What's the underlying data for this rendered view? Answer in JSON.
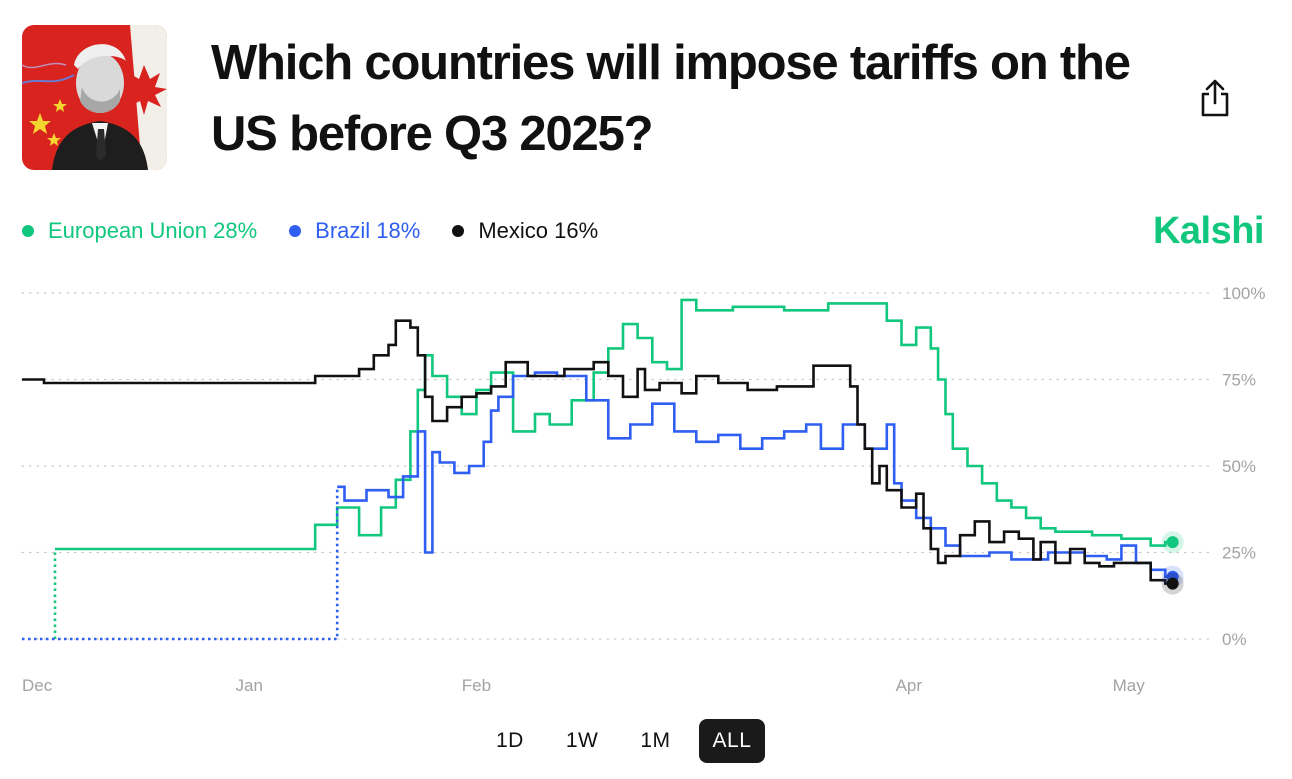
{
  "header": {
    "title": "Which countries will impose tariffs on the US before Q3 2025?",
    "share_icon": "share-icon",
    "thumbnail_icon": "market-thumbnail-image"
  },
  "legend": {
    "items": [
      {
        "label": "European Union 28%",
        "color": "#10c77d"
      },
      {
        "label": "Brazil 18%",
        "color": "#2f5ef3"
      },
      {
        "label": "Mexico 16%",
        "color": "#111111"
      }
    ]
  },
  "brand": {
    "name": "Kalshi",
    "color": "#10c77d"
  },
  "ranges": {
    "items": [
      "1D",
      "1W",
      "1M",
      "ALL"
    ],
    "active": "ALL"
  },
  "chart_data": {
    "type": "line",
    "title": "",
    "xlabel": "",
    "ylabel": "",
    "ylim": [
      0,
      100
    ],
    "grid": true,
    "legend": "top-left",
    "x_unit": "days since Dec 1, 2024",
    "xlim": [
      0,
      158
    ],
    "x_ticks": [
      {
        "label": "Dec",
        "x": 0
      },
      {
        "label": "Jan",
        "x": 31
      },
      {
        "label": "Feb",
        "x": 62
      },
      {
        "label": "Apr",
        "x": 121
      },
      {
        "label": "May",
        "x": 151
      }
    ],
    "y_ticks": [
      {
        "label": "100%",
        "value": 100
      },
      {
        "label": "75%",
        "value": 75
      },
      {
        "label": "50%",
        "value": 50
      },
      {
        "label": "25%",
        "value": 25
      },
      {
        "label": "0%",
        "value": 0
      }
    ],
    "series": [
      {
        "name": "European Union",
        "color": "#10c77d",
        "end_value": 28,
        "pre_trading": [
          [
            4.5,
            0
          ],
          [
            4.5,
            26
          ]
        ],
        "points": [
          [
            4.5,
            26
          ],
          [
            40,
            26
          ],
          [
            40,
            33
          ],
          [
            43,
            33
          ],
          [
            43,
            38
          ],
          [
            46,
            38
          ],
          [
            46,
            30
          ],
          [
            49,
            30
          ],
          [
            49,
            38
          ],
          [
            51,
            38
          ],
          [
            51,
            46
          ],
          [
            53,
            46
          ],
          [
            53,
            60
          ],
          [
            54,
            60
          ],
          [
            54,
            72
          ],
          [
            55,
            72
          ],
          [
            55,
            82
          ],
          [
            56,
            82
          ],
          [
            56,
            76
          ],
          [
            58,
            76
          ],
          [
            58,
            70
          ],
          [
            60,
            70
          ],
          [
            60,
            65
          ],
          [
            62,
            65
          ],
          [
            62,
            72
          ],
          [
            64,
            72
          ],
          [
            64,
            77
          ],
          [
            67,
            77
          ],
          [
            67,
            60
          ],
          [
            70,
            60
          ],
          [
            70,
            65
          ],
          [
            72,
            65
          ],
          [
            72,
            62
          ],
          [
            75,
            62
          ],
          [
            75,
            69
          ],
          [
            78,
            69
          ],
          [
            78,
            77
          ],
          [
            80,
            77
          ],
          [
            80,
            84
          ],
          [
            82,
            84
          ],
          [
            82,
            91
          ],
          [
            84,
            91
          ],
          [
            84,
            87
          ],
          [
            86,
            87
          ],
          [
            86,
            80
          ],
          [
            88,
            80
          ],
          [
            88,
            78
          ],
          [
            90,
            78
          ],
          [
            90,
            98
          ],
          [
            92,
            98
          ],
          [
            92,
            95
          ],
          [
            97,
            95
          ],
          [
            97,
            96
          ],
          [
            104,
            96
          ],
          [
            104,
            95
          ],
          [
            110,
            95
          ],
          [
            110,
            97
          ],
          [
            118,
            97
          ],
          [
            118,
            92
          ],
          [
            120,
            92
          ],
          [
            120,
            85
          ],
          [
            122,
            85
          ],
          [
            122,
            90
          ],
          [
            124,
            90
          ],
          [
            124,
            84
          ],
          [
            125,
            84
          ],
          [
            125,
            75
          ],
          [
            126,
            75
          ],
          [
            126,
            65
          ],
          [
            127,
            65
          ],
          [
            127,
            55
          ],
          [
            129,
            55
          ],
          [
            129,
            50
          ],
          [
            131,
            50
          ],
          [
            131,
            45
          ],
          [
            133,
            45
          ],
          [
            133,
            40
          ],
          [
            135,
            40
          ],
          [
            135,
            38
          ],
          [
            137,
            38
          ],
          [
            137,
            35
          ],
          [
            139,
            35
          ],
          [
            139,
            32
          ],
          [
            141,
            32
          ],
          [
            141,
            31
          ],
          [
            146,
            31
          ],
          [
            146,
            30
          ],
          [
            150,
            30
          ],
          [
            150,
            29
          ],
          [
            154,
            29
          ],
          [
            154,
            27
          ],
          [
            156,
            27
          ],
          [
            156,
            28
          ],
          [
            157,
            28
          ]
        ]
      },
      {
        "name": "Brazil",
        "color": "#2f5ef3",
        "end_value": 18,
        "pre_trading": [
          [
            0,
            0
          ],
          [
            43,
            0
          ],
          [
            43,
            44
          ]
        ],
        "points": [
          [
            43,
            44
          ],
          [
            44,
            44
          ],
          [
            44,
            40
          ],
          [
            47,
            40
          ],
          [
            47,
            43
          ],
          [
            50,
            43
          ],
          [
            50,
            41
          ],
          [
            52,
            41
          ],
          [
            52,
            47
          ],
          [
            54,
            47
          ],
          [
            54,
            60
          ],
          [
            55,
            60
          ],
          [
            55,
            25
          ],
          [
            56,
            25
          ],
          [
            56,
            54
          ],
          [
            57,
            54
          ],
          [
            57,
            51
          ],
          [
            59,
            51
          ],
          [
            59,
            48
          ],
          [
            61,
            48
          ],
          [
            61,
            50
          ],
          [
            63,
            50
          ],
          [
            63,
            57
          ],
          [
            64,
            57
          ],
          [
            64,
            66
          ],
          [
            65,
            66
          ],
          [
            65,
            70
          ],
          [
            67,
            70
          ],
          [
            67,
            76
          ],
          [
            70,
            76
          ],
          [
            70,
            77
          ],
          [
            73,
            77
          ],
          [
            73,
            76
          ],
          [
            77,
            76
          ],
          [
            77,
            69
          ],
          [
            80,
            69
          ],
          [
            80,
            58
          ],
          [
            83,
            58
          ],
          [
            83,
            62
          ],
          [
            86,
            62
          ],
          [
            86,
            68
          ],
          [
            89,
            68
          ],
          [
            89,
            60
          ],
          [
            92,
            60
          ],
          [
            92,
            57
          ],
          [
            95,
            57
          ],
          [
            95,
            59
          ],
          [
            98,
            59
          ],
          [
            98,
            55
          ],
          [
            101,
            55
          ],
          [
            101,
            58
          ],
          [
            104,
            58
          ],
          [
            104,
            60
          ],
          [
            107,
            60
          ],
          [
            107,
            62
          ],
          [
            109,
            62
          ],
          [
            109,
            55
          ],
          [
            112,
            55
          ],
          [
            112,
            62
          ],
          [
            115,
            62
          ],
          [
            115,
            55
          ],
          [
            118,
            55
          ],
          [
            118,
            62
          ],
          [
            119,
            62
          ],
          [
            119,
            45
          ],
          [
            120,
            45
          ],
          [
            120,
            40
          ],
          [
            122,
            40
          ],
          [
            122,
            35
          ],
          [
            124,
            35
          ],
          [
            124,
            32
          ],
          [
            126,
            32
          ],
          [
            126,
            27
          ],
          [
            128,
            27
          ],
          [
            128,
            24
          ],
          [
            132,
            24
          ],
          [
            132,
            25
          ],
          [
            135,
            25
          ],
          [
            135,
            23
          ],
          [
            140,
            23
          ],
          [
            140,
            25
          ],
          [
            145,
            25
          ],
          [
            145,
            24
          ],
          [
            148,
            24
          ],
          [
            148,
            23
          ],
          [
            150,
            23
          ],
          [
            150,
            27
          ],
          [
            152,
            27
          ],
          [
            152,
            22
          ],
          [
            154,
            22
          ],
          [
            154,
            20
          ],
          [
            156,
            20
          ],
          [
            156,
            18
          ],
          [
            157,
            18
          ]
        ]
      },
      {
        "name": "Mexico",
        "color": "#111111",
        "end_value": 16,
        "pre_trading": [],
        "points": [
          [
            0,
            75
          ],
          [
            3,
            75
          ],
          [
            3,
            74
          ],
          [
            20,
            74
          ],
          [
            40,
            74
          ],
          [
            40,
            76
          ],
          [
            44,
            76
          ],
          [
            44,
            76
          ],
          [
            46,
            76
          ],
          [
            46,
            78
          ],
          [
            48,
            78
          ],
          [
            48,
            82
          ],
          [
            50,
            82
          ],
          [
            50,
            85
          ],
          [
            51,
            85
          ],
          [
            51,
            92
          ],
          [
            53,
            92
          ],
          [
            53,
            90
          ],
          [
            54,
            90
          ],
          [
            54,
            82
          ],
          [
            55,
            82
          ],
          [
            55,
            70
          ],
          [
            56,
            70
          ],
          [
            56,
            63
          ],
          [
            58,
            63
          ],
          [
            58,
            67
          ],
          [
            60,
            67
          ],
          [
            60,
            70
          ],
          [
            62,
            70
          ],
          [
            62,
            71
          ],
          [
            64,
            71
          ],
          [
            64,
            73
          ],
          [
            66,
            73
          ],
          [
            66,
            80
          ],
          [
            69,
            80
          ],
          [
            69,
            76
          ],
          [
            74,
            76
          ],
          [
            74,
            78
          ],
          [
            78,
            78
          ],
          [
            78,
            80
          ],
          [
            80,
            80
          ],
          [
            80,
            76
          ],
          [
            82,
            76
          ],
          [
            82,
            70
          ],
          [
            84,
            70
          ],
          [
            84,
            78
          ],
          [
            85,
            78
          ],
          [
            85,
            72
          ],
          [
            87,
            72
          ],
          [
            87,
            74
          ],
          [
            90,
            74
          ],
          [
            90,
            71
          ],
          [
            92,
            71
          ],
          [
            92,
            76
          ],
          [
            95,
            76
          ],
          [
            95,
            74
          ],
          [
            99,
            74
          ],
          [
            99,
            72
          ],
          [
            103,
            72
          ],
          [
            103,
            73
          ],
          [
            108,
            73
          ],
          [
            108,
            79
          ],
          [
            110,
            79
          ],
          [
            110,
            79
          ],
          [
            113,
            79
          ],
          [
            113,
            73
          ],
          [
            114,
            73
          ],
          [
            114,
            62
          ],
          [
            115,
            62
          ],
          [
            115,
            55
          ],
          [
            116,
            55
          ],
          [
            116,
            45
          ],
          [
            117,
            45
          ],
          [
            117,
            50
          ],
          [
            118,
            50
          ],
          [
            118,
            43
          ],
          [
            120,
            43
          ],
          [
            120,
            38
          ],
          [
            122,
            38
          ],
          [
            122,
            42
          ],
          [
            123,
            42
          ],
          [
            123,
            32
          ],
          [
            124,
            32
          ],
          [
            124,
            26
          ],
          [
            125,
            26
          ],
          [
            125,
            22
          ],
          [
            126,
            22
          ],
          [
            126,
            24
          ],
          [
            128,
            24
          ],
          [
            128,
            30
          ],
          [
            130,
            30
          ],
          [
            130,
            34
          ],
          [
            132,
            34
          ],
          [
            132,
            28
          ],
          [
            134,
            28
          ],
          [
            134,
            31
          ],
          [
            136,
            31
          ],
          [
            136,
            29
          ],
          [
            138,
            29
          ],
          [
            138,
            23
          ],
          [
            139,
            23
          ],
          [
            139,
            28
          ],
          [
            141,
            28
          ],
          [
            141,
            22
          ],
          [
            143,
            22
          ],
          [
            143,
            26
          ],
          [
            145,
            26
          ],
          [
            145,
            22
          ],
          [
            147,
            22
          ],
          [
            147,
            21
          ],
          [
            149,
            21
          ],
          [
            149,
            22
          ],
          [
            151,
            22
          ],
          [
            151,
            22
          ],
          [
            154,
            22
          ],
          [
            154,
            17
          ],
          [
            156,
            17
          ],
          [
            156,
            16
          ],
          [
            157,
            16
          ]
        ]
      }
    ]
  }
}
